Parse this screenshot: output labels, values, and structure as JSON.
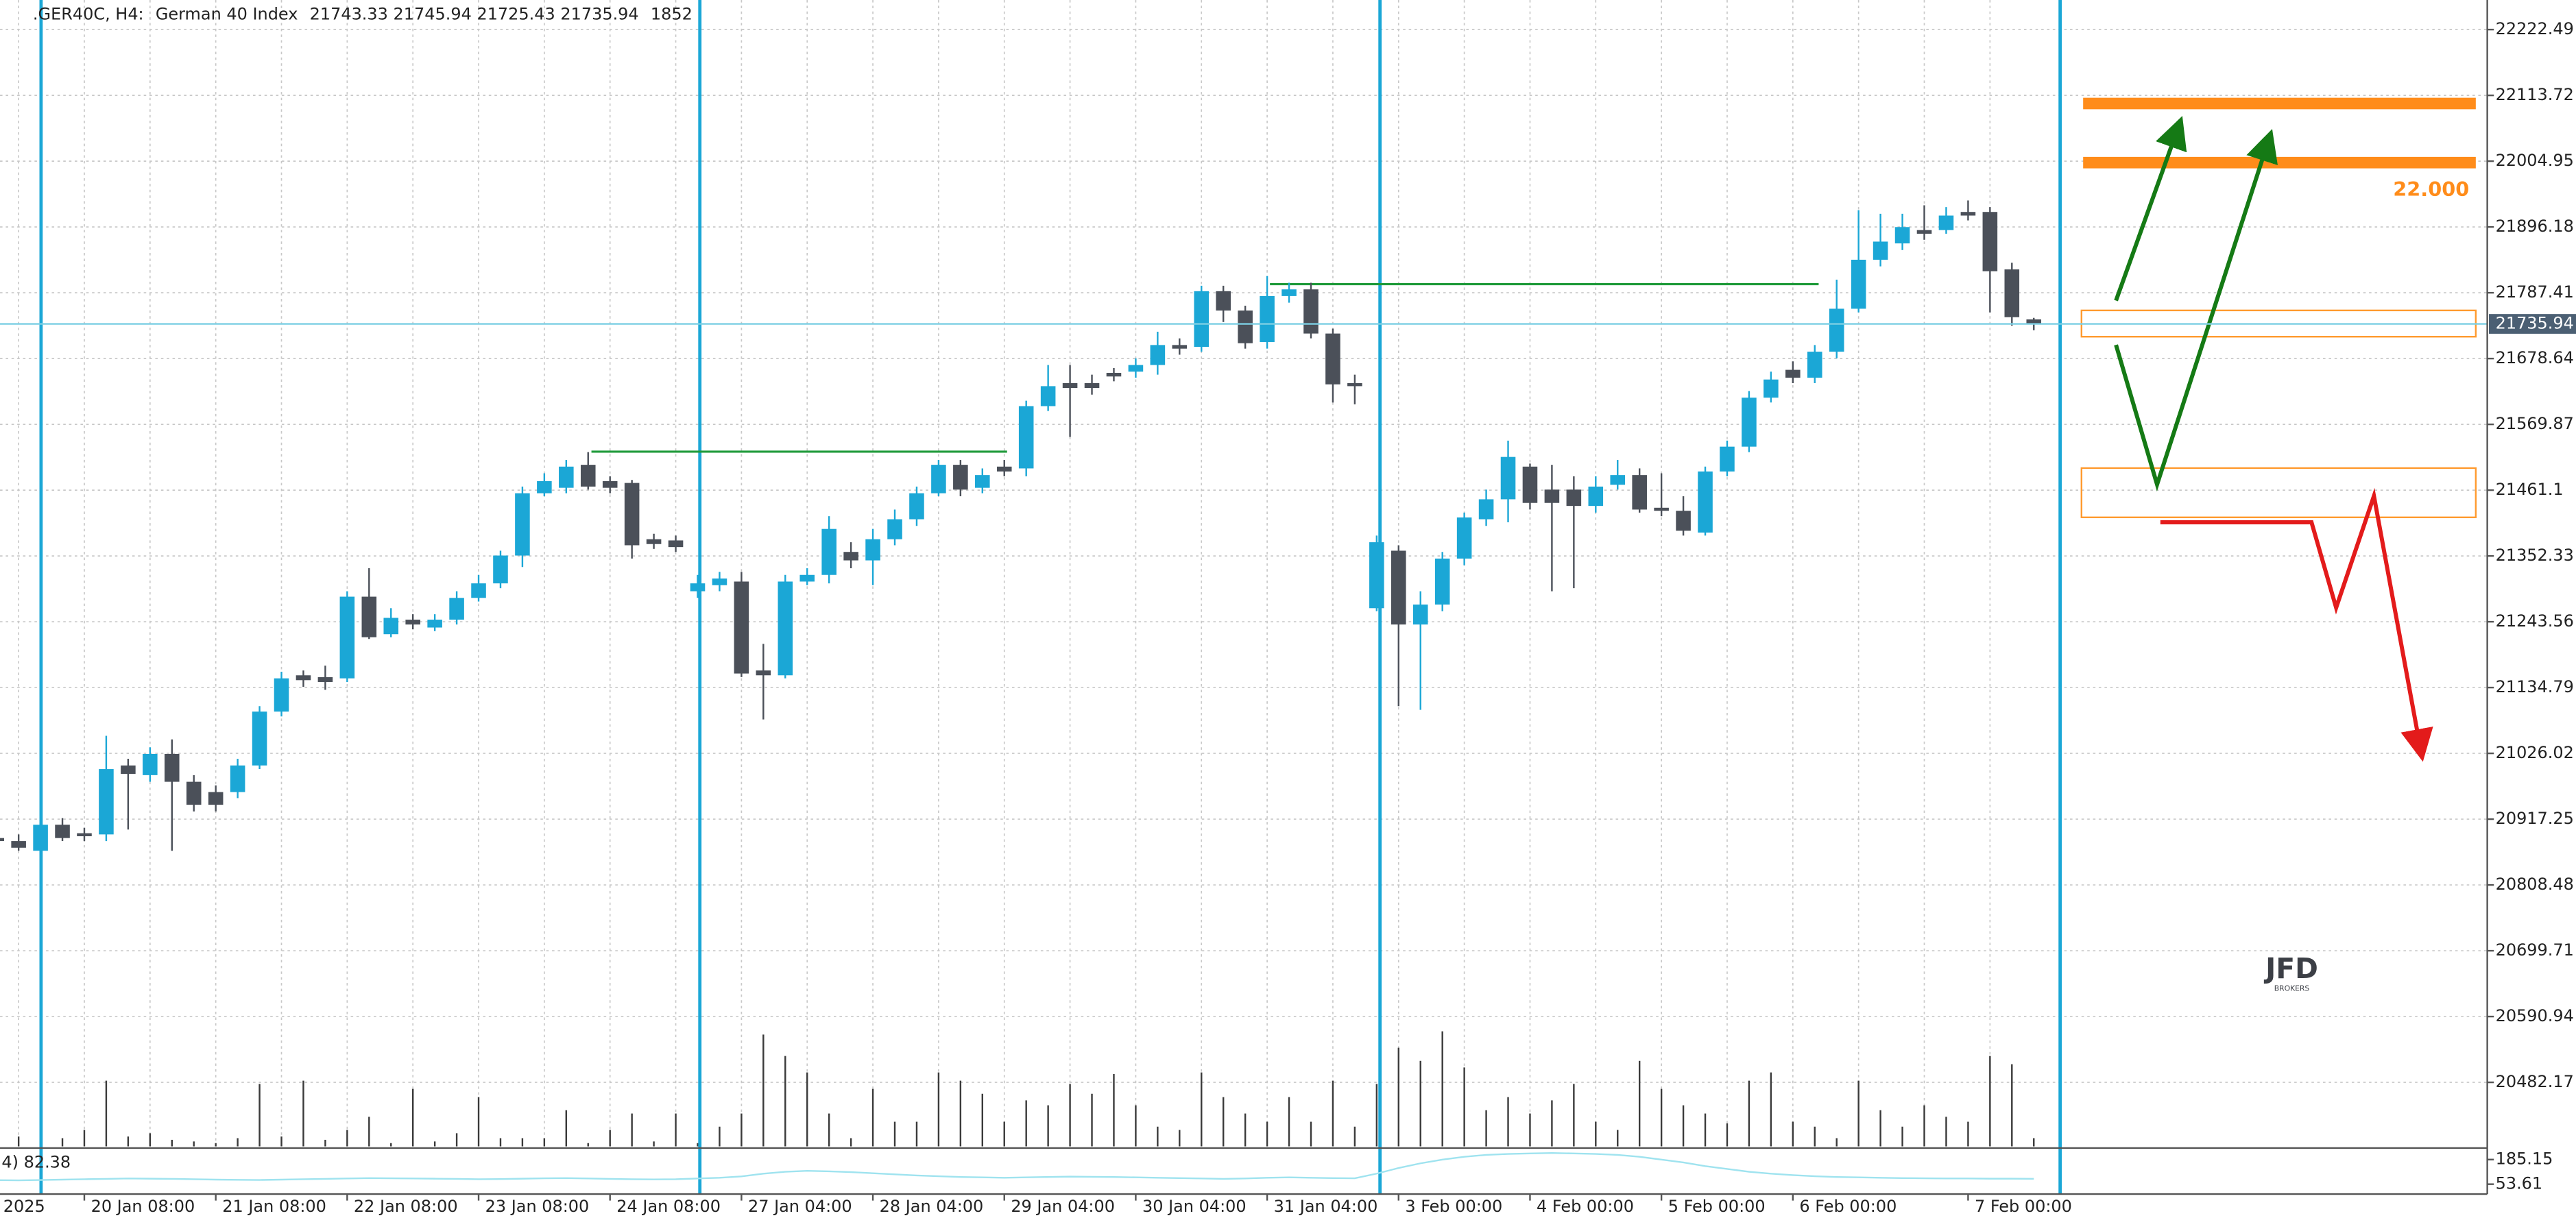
{
  "chart_data": {
    "type": "candlestick",
    "title": ".GER40C, H4:",
    "subtitle": "German 40 Index",
    "up_color": "#1ba7d6",
    "down_color": "#4b5059",
    "grid": true,
    "categories": [
      "2025",
      null,
      null,
      null,
      "20 Jan 08:00",
      null,
      null,
      null,
      null,
      null,
      "21 Jan 08:00",
      null,
      null,
      null,
      null,
      null,
      "22 Jan 08:00",
      null,
      null,
      null,
      null,
      null,
      "23 Jan 08:00",
      null,
      null,
      null,
      null,
      null,
      "24 Jan 08:00",
      null,
      null,
      null,
      null,
      null,
      "27 Jan 04:00",
      null,
      null,
      null,
      null,
      null,
      "28 Jan 04:00",
      null,
      null,
      null,
      null,
      null,
      "29 Jan 04:00",
      null,
      null,
      null,
      null,
      null,
      "30 Jan 04:00",
      null,
      null,
      null,
      null,
      null,
      "31 Jan 04:00",
      null,
      null,
      null,
      null,
      null,
      "3 Feb 00:00",
      null,
      null,
      null,
      null,
      null,
      "4 Feb 00:00",
      null,
      null,
      null,
      null,
      null,
      "5 Feb 00:00",
      null,
      null,
      null,
      null,
      null,
      "6 Feb 00:00",
      null,
      null,
      null,
      null,
      null,
      null,
      null,
      "7 Feb 00:00",
      null,
      null,
      null
    ],
    "candles": [
      {
        "open": 20886,
        "high": 20897,
        "low": 20870,
        "close": 20881
      },
      {
        "open": 20881,
        "high": 20892,
        "low": 20865,
        "close": 20870
      },
      {
        "open": 20865,
        "high": 20919,
        "low": 20859,
        "close": 20908
      },
      {
        "open": 20908,
        "high": 20919,
        "low": 20881,
        "close": 20886
      },
      {
        "open": 20894,
        "high": 20903,
        "low": 20881,
        "close": 20889
      },
      {
        "open": 20892,
        "high": 21055,
        "low": 20881,
        "close": 21000
      },
      {
        "open": 21006,
        "high": 21017,
        "low": 20900,
        "close": 20992
      },
      {
        "open": 20990,
        "high": 21036,
        "low": 20979,
        "close": 21025
      },
      {
        "open": 21025,
        "high": 21049,
        "low": 20865,
        "close": 20979
      },
      {
        "open": 20979,
        "high": 20990,
        "low": 20930,
        "close": 20941
      },
      {
        "open": 20962,
        "high": 20973,
        "low": 20930,
        "close": 20941
      },
      {
        "open": 20962,
        "high": 21017,
        "low": 20952,
        "close": 21006
      },
      {
        "open": 21006,
        "high": 21104,
        "low": 21000,
        "close": 21095
      },
      {
        "open": 21095,
        "high": 21161,
        "low": 21087,
        "close": 21150
      },
      {
        "open": 21155,
        "high": 21163,
        "low": 21136,
        "close": 21147
      },
      {
        "open": 21152,
        "high": 21171,
        "low": 21131,
        "close": 21144
      },
      {
        "open": 21150,
        "high": 21294,
        "low": 21144,
        "close": 21285
      },
      {
        "open": 21285,
        "high": 21332,
        "low": 21215,
        "close": 21218
      },
      {
        "open": 21223,
        "high": 21266,
        "low": 21218,
        "close": 21250
      },
      {
        "open": 21247,
        "high": 21256,
        "low": 21231,
        "close": 21239
      },
      {
        "open": 21234,
        "high": 21256,
        "low": 21228,
        "close": 21247
      },
      {
        "open": 21247,
        "high": 21294,
        "low": 21239,
        "close": 21283
      },
      {
        "open": 21283,
        "high": 21321,
        "low": 21277,
        "close": 21307
      },
      {
        "open": 21307,
        "high": 21361,
        "low": 21299,
        "close": 21353
      },
      {
        "open": 21353,
        "high": 21467,
        "low": 21334,
        "close": 21456
      },
      {
        "open": 21456,
        "high": 21489,
        "low": 21451,
        "close": 21476
      },
      {
        "open": 21465,
        "high": 21511,
        "low": 21456,
        "close": 21500
      },
      {
        "open": 21503,
        "high": 21524,
        "low": 21462,
        "close": 21467
      },
      {
        "open": 21476,
        "high": 21484,
        "low": 21456,
        "close": 21465
      },
      {
        "open": 21473,
        "high": 21478,
        "low": 21348,
        "close": 21370
      },
      {
        "open": 21380,
        "high": 21389,
        "low": 21364,
        "close": 21372
      },
      {
        "open": 21378,
        "high": 21386,
        "low": 21359,
        "close": 21367
      },
      {
        "open": 21294,
        "high": 21321,
        "low": 21283,
        "close": 21307
      },
      {
        "open": 21304,
        "high": 21326,
        "low": 21294,
        "close": 21315
      },
      {
        "open": 21310,
        "high": 21326,
        "low": 21152,
        "close": 21158
      },
      {
        "open": 21163,
        "high": 21207,
        "low": 21082,
        "close": 21155
      },
      {
        "open": 21155,
        "high": 21321,
        "low": 21150,
        "close": 21310
      },
      {
        "open": 21310,
        "high": 21332,
        "low": 21304,
        "close": 21321
      },
      {
        "open": 21321,
        "high": 21418,
        "low": 21307,
        "close": 21397
      },
      {
        "open": 21359,
        "high": 21375,
        "low": 21332,
        "close": 21345
      },
      {
        "open": 21345,
        "high": 21397,
        "low": 21304,
        "close": 21380
      },
      {
        "open": 21380,
        "high": 21429,
        "low": 21370,
        "close": 21413
      },
      {
        "open": 21413,
        "high": 21467,
        "low": 21402,
        "close": 21456
      },
      {
        "open": 21456,
        "high": 21511,
        "low": 21451,
        "close": 21503
      },
      {
        "open": 21503,
        "high": 21511,
        "low": 21451,
        "close": 21462
      },
      {
        "open": 21465,
        "high": 21497,
        "low": 21456,
        "close": 21486
      },
      {
        "open": 21500,
        "high": 21511,
        "low": 21484,
        "close": 21492
      },
      {
        "open": 21497,
        "high": 21609,
        "low": 21484,
        "close": 21600
      },
      {
        "open": 21600,
        "high": 21668,
        "low": 21592,
        "close": 21633
      },
      {
        "open": 21638,
        "high": 21668,
        "low": 21549,
        "close": 21630
      },
      {
        "open": 21638,
        "high": 21652,
        "low": 21619,
        "close": 21630
      },
      {
        "open": 21655,
        "high": 21663,
        "low": 21641,
        "close": 21649
      },
      {
        "open": 21657,
        "high": 21679,
        "low": 21647,
        "close": 21668
      },
      {
        "open": 21668,
        "high": 21723,
        "low": 21652,
        "close": 21701
      },
      {
        "open": 21701,
        "high": 21712,
        "low": 21685,
        "close": 21695
      },
      {
        "open": 21698,
        "high": 21799,
        "low": 21690,
        "close": 21790
      },
      {
        "open": 21790,
        "high": 21799,
        "low": 21739,
        "close": 21758
      },
      {
        "open": 21758,
        "high": 21766,
        "low": 21695,
        "close": 21704
      },
      {
        "open": 21706,
        "high": 21815,
        "low": 21695,
        "close": 21782
      },
      {
        "open": 21782,
        "high": 21804,
        "low": 21771,
        "close": 21793
      },
      {
        "open": 21793,
        "high": 21804,
        "low": 21712,
        "close": 21720
      },
      {
        "open": 21720,
        "high": 21728,
        "low": 21606,
        "close": 21636
      },
      {
        "open": 21638,
        "high": 21652,
        "low": 21603,
        "close": 21633
      },
      {
        "open": 21266,
        "high": 21386,
        "low": 21261,
        "close": 21375
      },
      {
        "open": 21361,
        "high": 21370,
        "low": 21104,
        "close": 21239
      },
      {
        "open": 21239,
        "high": 21294,
        "low": 21098,
        "close": 21272
      },
      {
        "open": 21272,
        "high": 21359,
        "low": 21261,
        "close": 21348
      },
      {
        "open": 21348,
        "high": 21424,
        "low": 21337,
        "close": 21416
      },
      {
        "open": 21413,
        "high": 21462,
        "low": 21402,
        "close": 21446
      },
      {
        "open": 21446,
        "high": 21543,
        "low": 21408,
        "close": 21516
      },
      {
        "open": 21500,
        "high": 21505,
        "low": 21429,
        "close": 21440
      },
      {
        "open": 21462,
        "high": 21503,
        "low": 21294,
        "close": 21440
      },
      {
        "open": 21462,
        "high": 21484,
        "low": 21299,
        "close": 21435
      },
      {
        "open": 21435,
        "high": 21484,
        "low": 21424,
        "close": 21467
      },
      {
        "open": 21470,
        "high": 21511,
        "low": 21462,
        "close": 21486
      },
      {
        "open": 21486,
        "high": 21497,
        "low": 21424,
        "close": 21429
      },
      {
        "open": 21432,
        "high": 21489,
        "low": 21418,
        "close": 21427
      },
      {
        "open": 21427,
        "high": 21451,
        "low": 21386,
        "close": 21394
      },
      {
        "open": 21391,
        "high": 21500,
        "low": 21386,
        "close": 21492
      },
      {
        "open": 21492,
        "high": 21543,
        "low": 21484,
        "close": 21533
      },
      {
        "open": 21533,
        "high": 21625,
        "low": 21524,
        "close": 21614
      },
      {
        "open": 21614,
        "high": 21657,
        "low": 21606,
        "close": 21644
      },
      {
        "open": 21660,
        "high": 21674,
        "low": 21638,
        "close": 21647
      },
      {
        "open": 21647,
        "high": 21701,
        "low": 21638,
        "close": 21690
      },
      {
        "open": 21690,
        "high": 21809,
        "low": 21679,
        "close": 21761
      },
      {
        "open": 21761,
        "high": 21924,
        "low": 21755,
        "close": 21842
      },
      {
        "open": 21842,
        "high": 21918,
        "low": 21831,
        "close": 21872
      },
      {
        "open": 21869,
        "high": 21918,
        "low": 21858,
        "close": 21896
      },
      {
        "open": 21891,
        "high": 21932,
        "low": 21875,
        "close": 21885
      },
      {
        "open": 21891,
        "high": 21929,
        "low": 21885,
        "close": 21915
      },
      {
        "open": 21921,
        "high": 21940,
        "low": 21907,
        "close": 21915
      },
      {
        "open": 21921,
        "high": 21929,
        "low": 21755,
        "close": 21823
      },
      {
        "open": 21826,
        "high": 21837,
        "low": 21733,
        "close": 21747
      },
      {
        "open": 21743.33,
        "high": 21745.94,
        "low": 21725.43,
        "close": 21735.94
      }
    ],
    "volume": [
      1110,
      2220,
      1850,
      1850,
      3700,
      14800,
      2220,
      2960,
      1480,
      1110,
      740,
      1850,
      14060,
      2220,
      14800,
      1480,
      3700,
      6660,
      740,
      12950,
      1110,
      2960,
      11100,
      1850,
      1850,
      1850,
      8140,
      740,
      3700,
      7400,
      1110,
      7400,
      740,
      4440,
      7400,
      25160,
      20350,
      16650,
      7400,
      1850,
      12950,
      5550,
      5550,
      16650,
      14800,
      11840,
      5550,
      10360,
      9250,
      14060,
      11840,
      16280,
      9250,
      4440,
      3700,
      16650,
      11100,
      7400,
      5550,
      11100,
      5550,
      14800,
      4440,
      14060,
      22200,
      19240,
      25900,
      17760,
      8140,
      11100,
      7400,
      10360,
      14060,
      5550,
      3700,
      19240,
      12950,
      9250,
      7400,
      5180,
      14800,
      16650,
      5550,
      4440,
      1850,
      14800,
      8140,
      4440,
      9250,
      6660,
      5550,
      20350,
      18500,
      1852
    ],
    "volume_ylim": [
      0,
      258000
    ],
    "ylim": [
      20376.28,
      22271.36
    ],
    "yticks": [
      22222.49,
      22113.72,
      22004.95,
      21896.18,
      21787.41,
      21678.64,
      21569.87,
      21461.1,
      21352.33,
      21243.56,
      21134.79,
      21026.02,
      20917.25,
      20808.48,
      20699.71,
      20590.94,
      20482.17
    ],
    "level_label": "22.000",
    "logo": {
      "name": "JFD",
      "sub": "BROKERS"
    },
    "indicator": {
      "label": "4) 82.38",
      "color": "#9fe3ef",
      "ylim": [
        1,
        238
      ],
      "yticks": [
        185.15,
        53.61
      ],
      "values": [
        75,
        74,
        76,
        78,
        80,
        82,
        84,
        83,
        82,
        80,
        78,
        77,
        76,
        78,
        80,
        82,
        84,
        86,
        85,
        84,
        83,
        82,
        80,
        81,
        83,
        85,
        86,
        84,
        82,
        80,
        79,
        80,
        84,
        88,
        95,
        110,
        120,
        125,
        122,
        118,
        112,
        106,
        100,
        96,
        92,
        90,
        88,
        90,
        92,
        94,
        93,
        92,
        90,
        88,
        86,
        84,
        82,
        84,
        88,
        90,
        88,
        86,
        85,
        110,
        140,
        165,
        185,
        200,
        210,
        215,
        218,
        220,
        218,
        215,
        210,
        200,
        185,
        170,
        150,
        135,
        120,
        110,
        102,
        96,
        92,
        90,
        88,
        86,
        85,
        84,
        84,
        83,
        83,
        82.38
      ]
    }
  }
}
